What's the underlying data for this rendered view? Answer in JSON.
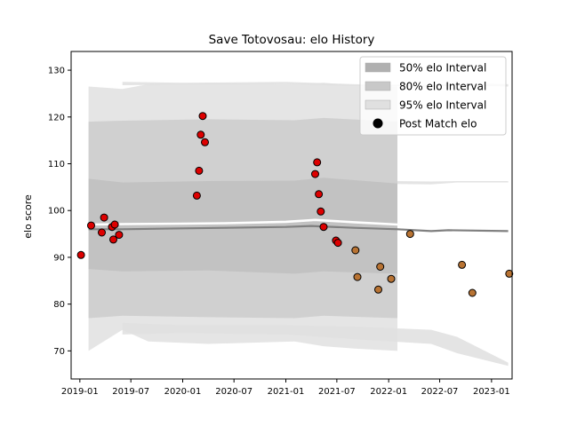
{
  "chart_data": {
    "type": "scatter",
    "title": "Save Totovosau: elo History",
    "xlabel": "",
    "ylabel": "elo score",
    "ylim": [
      64,
      134
    ],
    "xlim": [
      "2018-12-01",
      "2023-03-15"
    ],
    "y_ticks": [
      70,
      80,
      90,
      100,
      110,
      120,
      130
    ],
    "x_ticks": [
      {
        "date": "2019-01-01",
        "label": "2019-01"
      },
      {
        "date": "2019-07-01",
        "label": "2019-07"
      },
      {
        "date": "2020-01-01",
        "label": "2020-01"
      },
      {
        "date": "2020-07-01",
        "label": "2020-07"
      },
      {
        "date": "2021-01-01",
        "label": "2021-01"
      },
      {
        "date": "2021-07-01",
        "label": "2021-07"
      },
      {
        "date": "2022-01-01",
        "label": "2022-01"
      },
      {
        "date": "2022-07-01",
        "label": "2022-07"
      },
      {
        "date": "2023-01-01",
        "label": "2023-01"
      }
    ],
    "legend_position": "top-right",
    "grid": false,
    "bands": [
      {
        "name": "95% elo Interval",
        "color": "#e0e0e0",
        "x": [
          "2019-02-01",
          "2019-06-01",
          "2019-09-01",
          "2020-04-01",
          "2021-02-01",
          "2021-05-15",
          "2021-09-01",
          "2022-02-01"
        ],
        "upper": [
          126.5,
          126.0,
          127.0,
          127.2,
          127.0,
          127.3,
          126.8,
          126.5
        ],
        "lower": [
          70.0,
          74.5,
          72.0,
          71.5,
          72.0,
          71.0,
          70.5,
          70.0
        ]
      },
      {
        "name": "80% elo Interval",
        "color": "#cccccc",
        "x": [
          "2019-02-01",
          "2019-06-01",
          "2020-04-01",
          "2021-02-01",
          "2021-05-15",
          "2022-02-01"
        ],
        "upper": [
          119.0,
          119.2,
          119.5,
          119.3,
          119.8,
          119.0
        ],
        "lower": [
          77.0,
          77.5,
          77.2,
          77.0,
          77.5,
          77.0
        ]
      },
      {
        "name": "50% elo Interval",
        "color": "#bfbfbf",
        "x": [
          "2019-02-01",
          "2019-06-01",
          "2020-04-01",
          "2021-02-01",
          "2021-05-15",
          "2022-02-01"
        ],
        "upper": [
          106.8,
          106.0,
          106.3,
          106.4,
          107.0,
          105.8
        ],
        "lower": [
          87.5,
          87.0,
          87.2,
          86.5,
          87.0,
          86.5
        ]
      }
    ],
    "faint_bands": [
      {
        "x": [
          "2019-06-01",
          "2020-01-01",
          "2021-01-01",
          "2021-09-01",
          "2022-06-01",
          "2022-09-01",
          "2023-03-01"
        ],
        "upper": [
          127.5,
          127.3,
          127.5,
          127.0,
          126.8,
          127.2,
          127.0
        ],
        "lower": [
          126.8,
          126.9,
          127.0,
          126.6,
          126.5,
          126.7,
          126.5
        ]
      },
      {
        "x": [
          "2019-06-01",
          "2020-01-01",
          "2021-01-01",
          "2021-09-01",
          "2022-06-01",
          "2022-09-01",
          "2023-03-01"
        ],
        "upper": [
          76.0,
          75.5,
          75.5,
          75.2,
          74.5,
          73.0,
          67.5
        ],
        "lower": [
          73.5,
          73.8,
          73.5,
          72.5,
          71.5,
          69.5,
          66.8
        ]
      },
      {
        "x": [
          "2019-06-01",
          "2020-01-01",
          "2021-01-01",
          "2021-09-01",
          "2022-06-01",
          "2022-09-01",
          "2023-03-01"
        ],
        "upper": [
          106.8,
          106.5,
          106.6,
          106.4,
          106.2,
          106.3,
          106.3
        ],
        "lower": [
          106.2,
          106.0,
          106.0,
          105.8,
          105.6,
          106.0,
          106.0
        ]
      }
    ],
    "mean_line": {
      "color": "#808080",
      "x": [
        "2019-02-01",
        "2019-06-01",
        "2020-01-01",
        "2020-06-01",
        "2021-01-01",
        "2021-04-01",
        "2021-09-01",
        "2022-02-01",
        "2022-06-01",
        "2022-08-01",
        "2023-03-01"
      ],
      "y": [
        96.0,
        96.0,
        96.2,
        96.3,
        96.5,
        96.7,
        96.3,
        96.0,
        95.6,
        95.8,
        95.6
      ]
    },
    "white_line": {
      "color": "#ffffff",
      "x": [
        "2019-02-01",
        "2019-06-01",
        "2020-01-01",
        "2020-06-01",
        "2021-01-01",
        "2021-04-15",
        "2021-09-01",
        "2022-02-01"
      ],
      "y": [
        97.0,
        97.1,
        97.2,
        97.3,
        97.6,
        98.0,
        97.5,
        97.0
      ]
    },
    "series": [
      {
        "name": "Post Match elo",
        "color": "#dd0000",
        "x": [
          "2019-01-05",
          "2019-02-10",
          "2019-03-20",
          "2019-03-28",
          "2019-04-30",
          "2019-04-25",
          "2019-05-05",
          "2019-05-20",
          "2020-02-20",
          "2020-02-28",
          "2020-03-05",
          "2020-03-12",
          "2020-03-20",
          "2021-04-15",
          "2021-04-22",
          "2021-04-28",
          "2021-05-05",
          "2021-05-15",
          "2021-06-28",
          "2021-07-05"
        ],
        "y": [
          90.5,
          96.8,
          95.3,
          98.5,
          93.8,
          96.5,
          97.0,
          94.8,
          103.2,
          108.5,
          116.2,
          120.2,
          114.6,
          107.8,
          110.3,
          103.5,
          99.8,
          96.5,
          93.6,
          93.1
        ]
      },
      {
        "name": "",
        "color": "#b87333",
        "x": [
          "2021-09-05",
          "2021-09-12",
          "2021-11-25",
          "2021-12-02",
          "2022-01-10",
          "2022-03-18",
          "2022-09-18",
          "2022-10-25",
          "2023-03-05"
        ],
        "y": [
          91.5,
          85.8,
          83.1,
          88.0,
          85.4,
          95.0,
          88.4,
          82.4,
          86.5
        ]
      }
    ],
    "legend": [
      {
        "label": "50% elo Interval",
        "color": "#b0b0b0",
        "kind": "patch"
      },
      {
        "label": "80% elo Interval",
        "color": "#c8c8c8",
        "kind": "patch"
      },
      {
        "label": "95% elo Interval",
        "color": "#e0e0e0",
        "kind": "patch"
      },
      {
        "label": "Post Match elo",
        "color": "#000000",
        "kind": "marker"
      }
    ]
  }
}
